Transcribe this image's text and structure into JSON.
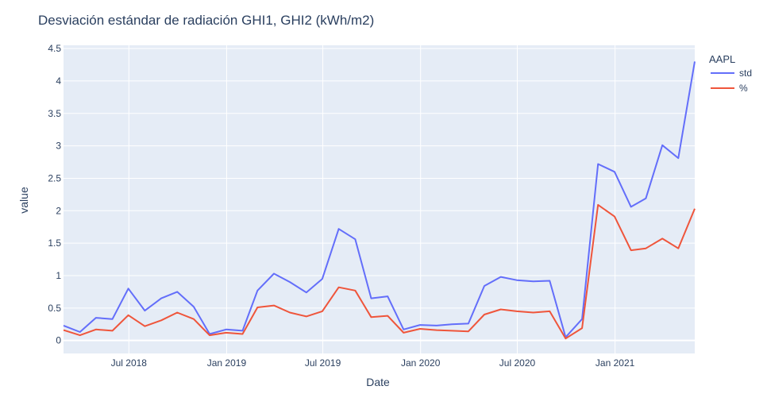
{
  "chart_data": {
    "type": "line",
    "title": "Desviación estándar de radiación GHI1, GHI2 (kWh/m2)",
    "xlabel": "Date",
    "ylabel": "value",
    "legend_title": "AAPL",
    "legend_position": "top-right",
    "grid": true,
    "x": [
      "2018-02-28",
      "2018-03-31",
      "2018-04-30",
      "2018-05-31",
      "2018-06-30",
      "2018-07-31",
      "2018-08-31",
      "2018-09-30",
      "2018-10-31",
      "2018-11-30",
      "2018-12-31",
      "2019-01-31",
      "2019-02-28",
      "2019-03-31",
      "2019-04-30",
      "2019-05-31",
      "2019-06-30",
      "2019-07-31",
      "2019-08-31",
      "2019-09-30",
      "2019-10-31",
      "2019-11-30",
      "2019-12-31",
      "2020-01-31",
      "2020-02-29",
      "2020-03-31",
      "2020-04-30",
      "2020-05-31",
      "2020-06-30",
      "2020-07-31",
      "2020-08-31",
      "2020-09-30",
      "2020-10-31",
      "2020-11-30",
      "2020-12-31",
      "2021-01-31",
      "2021-02-28",
      "2021-03-31",
      "2021-04-30",
      "2021-05-31"
    ],
    "x_ticks": [
      "Jul 2018",
      "Jan 2019",
      "Jul 2019",
      "Jan 2020",
      "Jul 2020",
      "Jan 2021"
    ],
    "x_tick_dates": [
      "2018-07-01",
      "2019-01-01",
      "2019-07-01",
      "2020-01-01",
      "2020-07-01",
      "2021-01-01"
    ],
    "xlim": [
      "2018-02-28",
      "2021-05-31"
    ],
    "ylim": [
      -0.2,
      4.55
    ],
    "y_ticks": [
      0,
      0.5,
      1,
      1.5,
      2,
      2.5,
      3,
      3.5,
      4,
      4.5
    ],
    "series": [
      {
        "name": "std",
        "color": "#636efa",
        "values": [
          0.23,
          0.13,
          0.35,
          0.33,
          0.8,
          0.46,
          0.65,
          0.75,
          0.52,
          0.1,
          0.17,
          0.15,
          0.77,
          1.03,
          0.9,
          0.74,
          0.95,
          1.72,
          1.56,
          0.65,
          0.68,
          0.17,
          0.24,
          0.23,
          0.25,
          0.26,
          0.84,
          0.98,
          0.93,
          0.91,
          0.92,
          0.05,
          0.33,
          2.72,
          2.6,
          2.06,
          2.19,
          3.01,
          2.81,
          4.3
        ]
      },
      {
        "name": "%",
        "color": "#ef553b",
        "values": [
          0.16,
          0.08,
          0.17,
          0.15,
          0.39,
          0.22,
          0.31,
          0.43,
          0.33,
          0.08,
          0.12,
          0.1,
          0.51,
          0.54,
          0.43,
          0.37,
          0.45,
          0.82,
          0.77,
          0.36,
          0.38,
          0.12,
          0.18,
          0.16,
          0.15,
          0.14,
          0.4,
          0.48,
          0.45,
          0.43,
          0.45,
          0.03,
          0.19,
          2.09,
          1.91,
          1.39,
          1.42,
          1.57,
          1.42,
          2.03
        ]
      }
    ]
  }
}
